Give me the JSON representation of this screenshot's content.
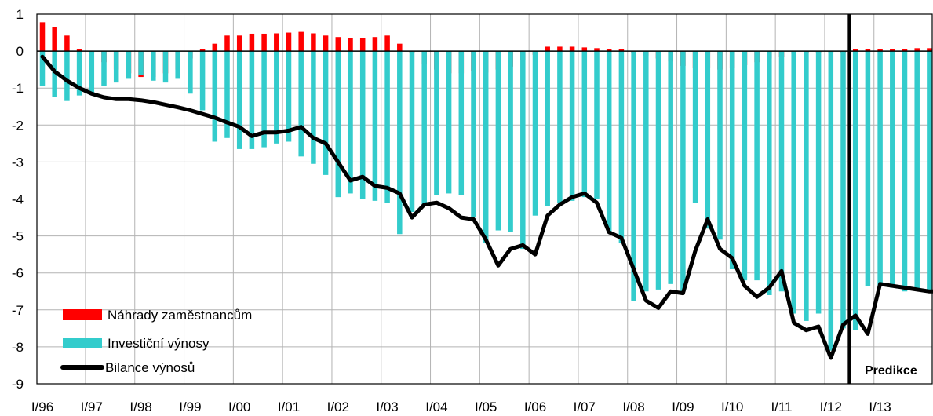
{
  "chart_data": {
    "type": "bar",
    "ylim": [
      -9,
      1
    ],
    "y_ticks": [
      1,
      0,
      -1,
      -2,
      -3,
      -4,
      -5,
      -6,
      -7,
      -8,
      -9
    ],
    "x_tick_labels": [
      "I/96",
      "I/97",
      "I/98",
      "I/99",
      "I/00",
      "I/01",
      "I/02",
      "I/03",
      "I/04",
      "I/05",
      "I/06",
      "I/07",
      "I/08",
      "I/09",
      "I/10",
      "I/11",
      "I/12",
      "I/13"
    ],
    "grid": true,
    "legend_position": "bottom-left",
    "annotation": "Predikce",
    "prediction_start_quarter": 66,
    "series": [
      {
        "name": "Náhrady zaměstnancům",
        "kind": "bar",
        "color": "#ff0000",
        "values": [
          0.78,
          0.65,
          0.42,
          0.05,
          -0.05,
          -0.3,
          -0.5,
          -0.6,
          -0.7,
          -0.7,
          -0.6,
          -0.5,
          -0.2,
          0.05,
          0.2,
          0.42,
          0.42,
          0.47,
          0.47,
          0.48,
          0.5,
          0.52,
          0.48,
          0.42,
          0.38,
          0.35,
          0.35,
          0.38,
          0.42,
          0.2,
          -0.05,
          -0.35,
          -0.5,
          -0.6,
          -0.6,
          -0.55,
          -0.58,
          -0.5,
          -0.42,
          -0.25,
          -0.1,
          0.12,
          0.12,
          0.12,
          0.1,
          0.08,
          0.05,
          0.05,
          -0.05,
          -0.12,
          -0.2,
          -0.28,
          -0.4,
          -0.45,
          -0.45,
          -0.5,
          -0.45,
          -0.38,
          -0.3,
          -0.2,
          -0.15,
          -0.08,
          -0.05,
          -0.05,
          -0.05,
          -0.05,
          0.05,
          0.05,
          0.05,
          0.05,
          0.05,
          0.08,
          0.08,
          0.08
        ]
      },
      {
        "name": "Investiční výnosy",
        "kind": "bar",
        "color": "#33cccc",
        "values": [
          -0.95,
          -1.25,
          -1.35,
          -1.2,
          -1.15,
          -0.95,
          -0.85,
          -0.75,
          -0.65,
          -0.8,
          -0.85,
          -0.75,
          -1.15,
          -1.6,
          -2.45,
          -2.35,
          -2.65,
          -2.65,
          -2.6,
          -2.5,
          -2.45,
          -2.85,
          -3.05,
          -3.35,
          -3.95,
          -3.85,
          -4.0,
          -4.05,
          -4.1,
          -4.95,
          -4.35,
          -4.15,
          -3.9,
          -3.85,
          -3.9,
          -4.5,
          -5.2,
          -4.85,
          -4.9,
          -5.35,
          -4.45,
          -4.2,
          -4.1,
          -4.05,
          -3.95,
          -4.0,
          -4.9,
          -5.2,
          -6.75,
          -6.5,
          -6.45,
          -6.3,
          -6.5,
          -4.1,
          -4.8,
          -5.1,
          -5.9,
          -6.2,
          -6.2,
          -6.6,
          -6.5,
          -7.1,
          -7.3,
          -7.1,
          -8.1,
          -7.5,
          -7.55,
          -6.35,
          -6.35,
          -6.4,
          -6.5,
          -6.45,
          -6.45,
          -6.5
        ]
      },
      {
        "name": "Bilance výnosů",
        "kind": "line",
        "color": "#000000",
        "values": [
          -0.15,
          -0.55,
          -0.8,
          -1.0,
          -1.15,
          -1.25,
          -1.3,
          -1.3,
          -1.33,
          -1.38,
          -1.45,
          -1.52,
          -1.6,
          -1.7,
          -1.8,
          -1.93,
          -2.05,
          -2.3,
          -2.2,
          -2.2,
          -2.15,
          -2.05,
          -2.35,
          -2.5,
          -3.0,
          -3.5,
          -3.4,
          -3.65,
          -3.7,
          -3.85,
          -4.5,
          -4.15,
          -4.1,
          -4.25,
          -4.5,
          -4.55,
          -5.1,
          -5.8,
          -5.35,
          -5.25,
          -5.5,
          -4.45,
          -4.15,
          -3.95,
          -3.85,
          -4.1,
          -4.9,
          -5.05,
          -5.9,
          -6.75,
          -6.95,
          -6.5,
          -6.55,
          -5.4,
          -4.55,
          -5.35,
          -5.6,
          -6.35,
          -6.65,
          -6.4,
          -5.95,
          -7.35,
          -7.55,
          -7.45,
          -8.3,
          -7.4,
          -7.15,
          -7.65,
          -6.3,
          -6.35,
          -6.4,
          -6.45,
          -6.5,
          -6.5
        ]
      }
    ]
  }
}
